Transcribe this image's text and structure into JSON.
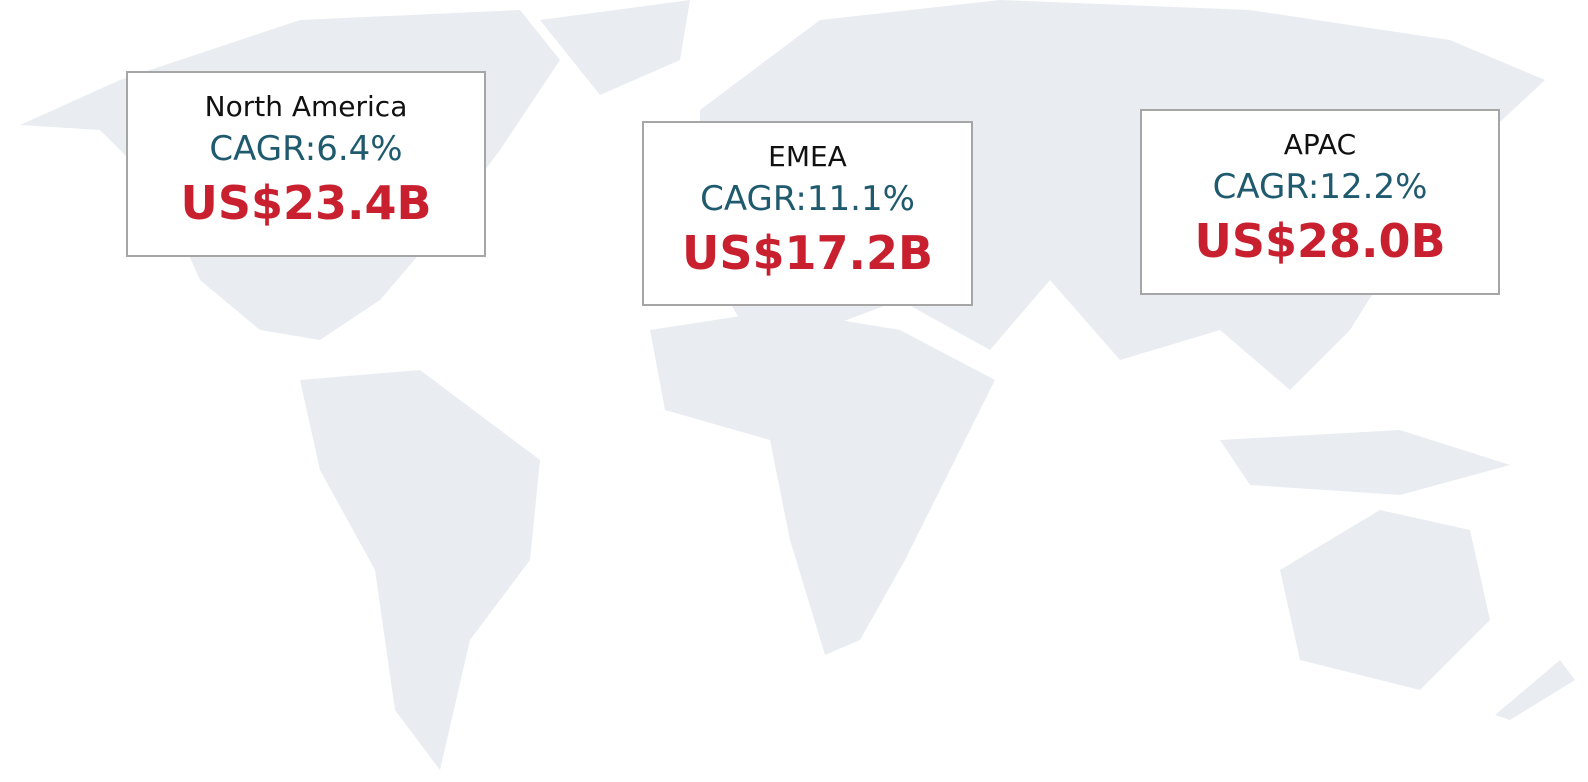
{
  "regions": [
    {
      "name": "North America",
      "cagr": "CAGR:6.4%",
      "value": "US$23.4B"
    },
    {
      "name": "EMEA",
      "cagr": "CAGR:11.1%",
      "value": "US$17.2B"
    },
    {
      "name": "APAC",
      "cagr": "CAGR:12.2%",
      "value": "US$28.0B"
    }
  ]
}
